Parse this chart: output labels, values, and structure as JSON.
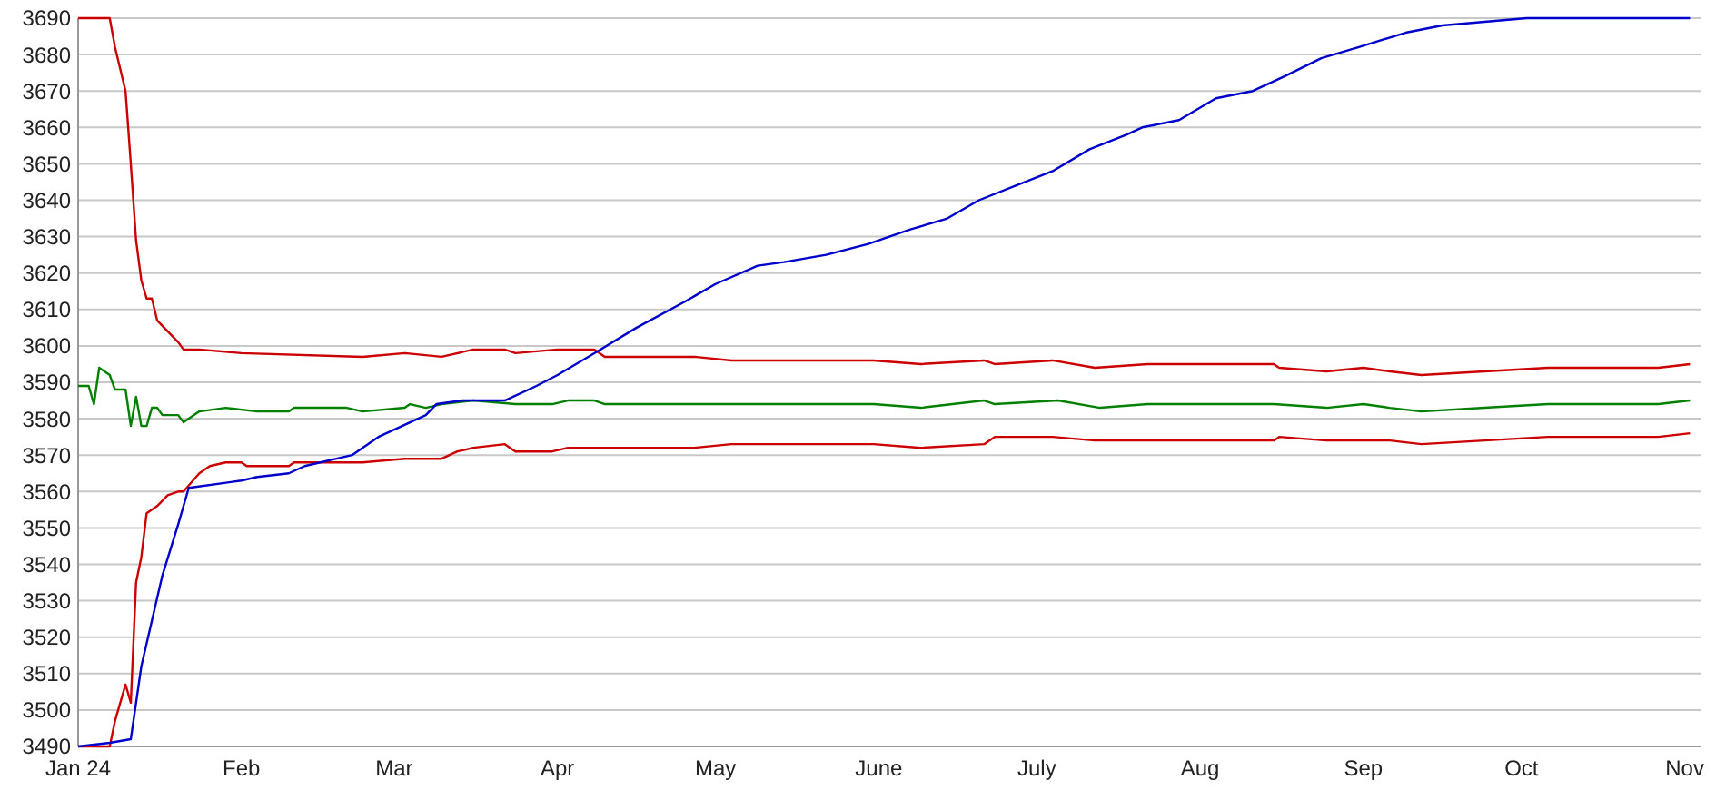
{
  "chart_data": {
    "type": "line",
    "xlim": [
      "2024-01-01",
      "2024-11-04"
    ],
    "ylim": [
      3490,
      3690
    ],
    "xticks": [
      {
        "value": "2024-01-01",
        "label": "Jan 24"
      },
      {
        "value": "2024-02-01",
        "label": "Feb"
      },
      {
        "value": "2024-03-01",
        "label": "Mar"
      },
      {
        "value": "2024-04-01",
        "label": "Apr"
      },
      {
        "value": "2024-05-01",
        "label": "May"
      },
      {
        "value": "2024-06-01",
        "label": "June"
      },
      {
        "value": "2024-07-01",
        "label": "July"
      },
      {
        "value": "2024-08-01",
        "label": "Aug"
      },
      {
        "value": "2024-09-01",
        "label": "Sep"
      },
      {
        "value": "2024-10-01",
        "label": "Oct"
      },
      {
        "value": "2024-11-01",
        "label": "Nov"
      }
    ],
    "yticks": [
      3490,
      3500,
      3510,
      3520,
      3530,
      3540,
      3550,
      3560,
      3570,
      3580,
      3590,
      3600,
      3610,
      3620,
      3630,
      3640,
      3650,
      3660,
      3670,
      3680,
      3690
    ],
    "grid": "y",
    "marker": "none",
    "line_style": "solid",
    "series": [
      {
        "color": "#cc0000",
        "x": [
          "2024-01-01",
          "2024-01-07",
          "2024-01-08",
          "2024-01-10",
          "2024-01-11",
          "2024-01-12",
          "2024-01-13",
          "2024-01-14",
          "2024-01-15",
          "2024-01-16",
          "2024-01-18",
          "2024-01-20",
          "2024-01-21",
          "2024-01-24",
          "2024-02-01",
          "2024-02-24",
          "2024-03-03",
          "2024-03-10",
          "2024-03-16",
          "2024-03-22",
          "2024-03-24",
          "2024-04-01",
          "2024-04-08",
          "2024-04-10",
          "2024-04-27",
          "2024-05-04",
          "2024-05-31",
          "2024-06-09",
          "2024-06-21",
          "2024-06-23",
          "2024-07-04",
          "2024-07-12",
          "2024-07-22",
          "2024-08-15",
          "2024-08-16",
          "2024-08-25",
          "2024-09-01",
          "2024-09-06",
          "2024-09-12",
          "2024-09-24",
          "2024-10-06",
          "2024-10-27",
          "2024-11-02"
        ],
        "values": [
          3690,
          3690,
          3682,
          3670,
          3650,
          3629,
          3618,
          3613,
          3613,
          3607,
          3604,
          3601,
          3599,
          3599,
          3598,
          3597,
          3598,
          3597,
          3599,
          3599,
          3598,
          3599,
          3599,
          3597,
          3597,
          3596,
          3596,
          3595,
          3596,
          3595,
          3596,
          3594,
          3595,
          3595,
          3594,
          3593,
          3594,
          3593,
          3592,
          3593,
          3594,
          3594,
          3595
        ]
      },
      {
        "color": "#008000",
        "x": [
          "2024-01-01",
          "2024-01-03",
          "2024-01-04",
          "2024-01-05",
          "2024-01-07",
          "2024-01-08",
          "2024-01-10",
          "2024-01-11",
          "2024-01-12",
          "2024-01-13",
          "2024-01-14",
          "2024-01-15",
          "2024-01-16",
          "2024-01-17",
          "2024-01-20",
          "2024-01-21",
          "2024-01-24",
          "2024-01-29",
          "2024-02-04",
          "2024-02-10",
          "2024-02-11",
          "2024-02-21",
          "2024-02-24",
          "2024-03-03",
          "2024-03-04",
          "2024-03-07",
          "2024-03-10",
          "2024-03-16",
          "2024-03-24",
          "2024-03-31",
          "2024-04-03",
          "2024-04-08",
          "2024-04-10",
          "2024-04-16",
          "2024-05-31",
          "2024-06-09",
          "2024-06-15",
          "2024-06-21",
          "2024-06-23",
          "2024-07-05",
          "2024-07-13",
          "2024-07-22",
          "2024-08-15",
          "2024-08-25",
          "2024-09-01",
          "2024-09-06",
          "2024-09-12",
          "2024-09-24",
          "2024-10-06",
          "2024-10-27",
          "2024-11-02"
        ],
        "values": [
          3589,
          3589,
          3584,
          3594,
          3592,
          3588,
          3588,
          3578,
          3586,
          3578,
          3578,
          3583,
          3583,
          3581,
          3581,
          3579,
          3582,
          3583,
          3582,
          3582,
          3583,
          3583,
          3582,
          3583,
          3584,
          3583,
          3584,
          3585,
          3584,
          3584,
          3585,
          3585,
          3584,
          3584,
          3584,
          3583,
          3584,
          3585,
          3584,
          3585,
          3583,
          3584,
          3584,
          3583,
          3584,
          3583,
          3582,
          3583,
          3584,
          3584,
          3585
        ]
      },
      {
        "color": "#cc0000",
        "x": [
          "2024-01-01",
          "2024-01-07",
          "2024-01-08",
          "2024-01-10",
          "2024-01-11",
          "2024-01-12",
          "2024-01-13",
          "2024-01-14",
          "2024-01-16",
          "2024-01-18",
          "2024-01-20",
          "2024-01-21",
          "2024-01-24",
          "2024-01-26",
          "2024-01-29",
          "2024-02-01",
          "2024-02-02",
          "2024-02-10",
          "2024-02-11",
          "2024-02-24",
          "2024-03-03",
          "2024-03-10",
          "2024-03-13",
          "2024-03-16",
          "2024-03-22",
          "2024-03-24",
          "2024-03-31",
          "2024-04-03",
          "2024-04-08",
          "2024-04-27",
          "2024-05-04",
          "2024-05-31",
          "2024-06-09",
          "2024-06-21",
          "2024-06-23",
          "2024-07-04",
          "2024-07-12",
          "2024-07-22",
          "2024-08-15",
          "2024-08-16",
          "2024-08-25",
          "2024-09-06",
          "2024-09-12",
          "2024-09-24",
          "2024-10-06",
          "2024-10-27",
          "2024-11-02"
        ],
        "values": [
          3490,
          3490,
          3497,
          3507,
          3502,
          3535,
          3542,
          3554,
          3556,
          3559,
          3560,
          3560,
          3565,
          3567,
          3568,
          3568,
          3567,
          3567,
          3568,
          3568,
          3569,
          3569,
          3571,
          3572,
          3573,
          3571,
          3571,
          3572,
          3572,
          3572,
          3573,
          3573,
          3572,
          3573,
          3575,
          3575,
          3574,
          3574,
          3574,
          3575,
          3574,
          3574,
          3573,
          3574,
          3575,
          3575,
          3576
        ]
      },
      {
        "color": "#0000cc",
        "x": [
          "2024-01-01",
          "2024-01-07",
          "2024-01-11",
          "2024-01-13",
          "2024-01-17",
          "2024-01-20",
          "2024-01-22",
          "2024-02-01",
          "2024-02-04",
          "2024-02-10",
          "2024-02-13",
          "2024-02-22",
          "2024-02-24",
          "2024-02-27",
          "2024-03-04",
          "2024-03-07",
          "2024-03-09",
          "2024-03-14",
          "2024-03-22",
          "2024-03-28",
          "2024-04-01",
          "2024-04-08",
          "2024-04-16",
          "2024-04-25",
          "2024-05-01",
          "2024-05-09",
          "2024-05-14",
          "2024-05-22",
          "2024-05-30",
          "2024-06-07",
          "2024-06-14",
          "2024-06-20",
          "2024-06-27",
          "2024-07-04",
          "2024-07-11",
          "2024-07-18",
          "2024-07-21",
          "2024-07-28",
          "2024-08-04",
          "2024-08-11",
          "2024-08-17",
          "2024-08-24",
          "2024-08-31",
          "2024-09-09",
          "2024-09-16",
          "2024-10-02",
          "2024-11-02"
        ],
        "values": [
          3490,
          3491,
          3492,
          3512,
          3537,
          3551,
          3561,
          3563,
          3564,
          3565,
          3567,
          3570,
          3572,
          3575,
          3579,
          3581,
          3584,
          3585,
          3585,
          3589,
          3592,
          3598,
          3605,
          3612,
          3617,
          3622,
          3623,
          3625,
          3628,
          3632,
          3635,
          3640,
          3644,
          3648,
          3654,
          3658,
          3660,
          3662,
          3668,
          3670,
          3674,
          3679,
          3682,
          3686,
          3688,
          3690,
          3690
        ]
      }
    ]
  }
}
